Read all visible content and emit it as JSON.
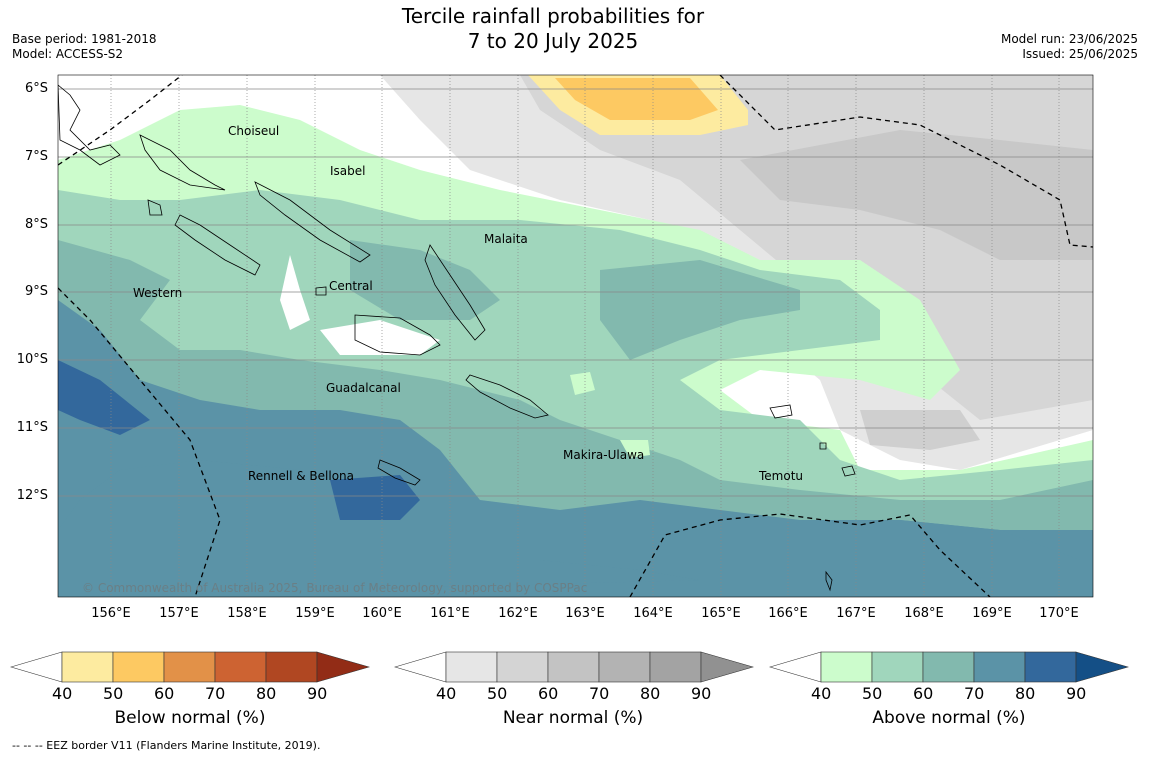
{
  "title": {
    "line1": "Tercile rainfall probabilities for",
    "line2": "7 to 20 July 2025"
  },
  "meta_left": {
    "base_period": "Base period: 1981-2018",
    "model": "Model: ACCESS-S2"
  },
  "meta_right": {
    "model_run": "Model run: 23/06/2025",
    "issued": "Issued: 25/06/2025"
  },
  "map": {
    "lat_labels": [
      "6°S",
      "7°S",
      "8°S",
      "9°S",
      "10°S",
      "11°S",
      "12°S"
    ],
    "lon_labels": [
      "156°E",
      "157°E",
      "158°E",
      "159°E",
      "160°E",
      "161°E",
      "162°E",
      "163°E",
      "164°E",
      "165°E",
      "166°E",
      "167°E",
      "168°E",
      "169°E",
      "170°E"
    ],
    "regions": [
      "Choiseul",
      "Isabel",
      "Malaita",
      "Central",
      "Western",
      "Guadalcanal",
      "Makira-Ulawa",
      "Temotu",
      "Rennell & Bellona"
    ],
    "copyright": "© Commonwealth of Australia 2025, Bureau of Meteorology, supported by COSPPac"
  },
  "legend": {
    "below": {
      "label": "Below normal (%)",
      "ticks": [
        "40",
        "50",
        "60",
        "70",
        "80",
        "90"
      ],
      "colors": [
        "#ffffff",
        "#fdeba0",
        "#fdc962",
        "#e29148",
        "#cd6332",
        "#b04722",
        "#922c16"
      ]
    },
    "near": {
      "label": "Near normal (%)",
      "ticks": [
        "40",
        "50",
        "60",
        "70",
        "80",
        "90"
      ],
      "colors": [
        "#ffffff",
        "#e6e6e6",
        "#d4d4d4",
        "#c3c3c3",
        "#b3b3b3",
        "#a3a3a3",
        "#919191"
      ]
    },
    "above": {
      "label": "Above normal (%)",
      "ticks": [
        "40",
        "50",
        "60",
        "70",
        "80",
        "90"
      ],
      "colors": [
        "#ffffff",
        "#ccfccc",
        "#a0d6bc",
        "#82b9ae",
        "#5b93a7",
        "#33689c",
        "#144f86"
      ]
    }
  },
  "footer": "--  --  -- EEZ border V11 (Flanders Marine Institute, 2019)."
}
